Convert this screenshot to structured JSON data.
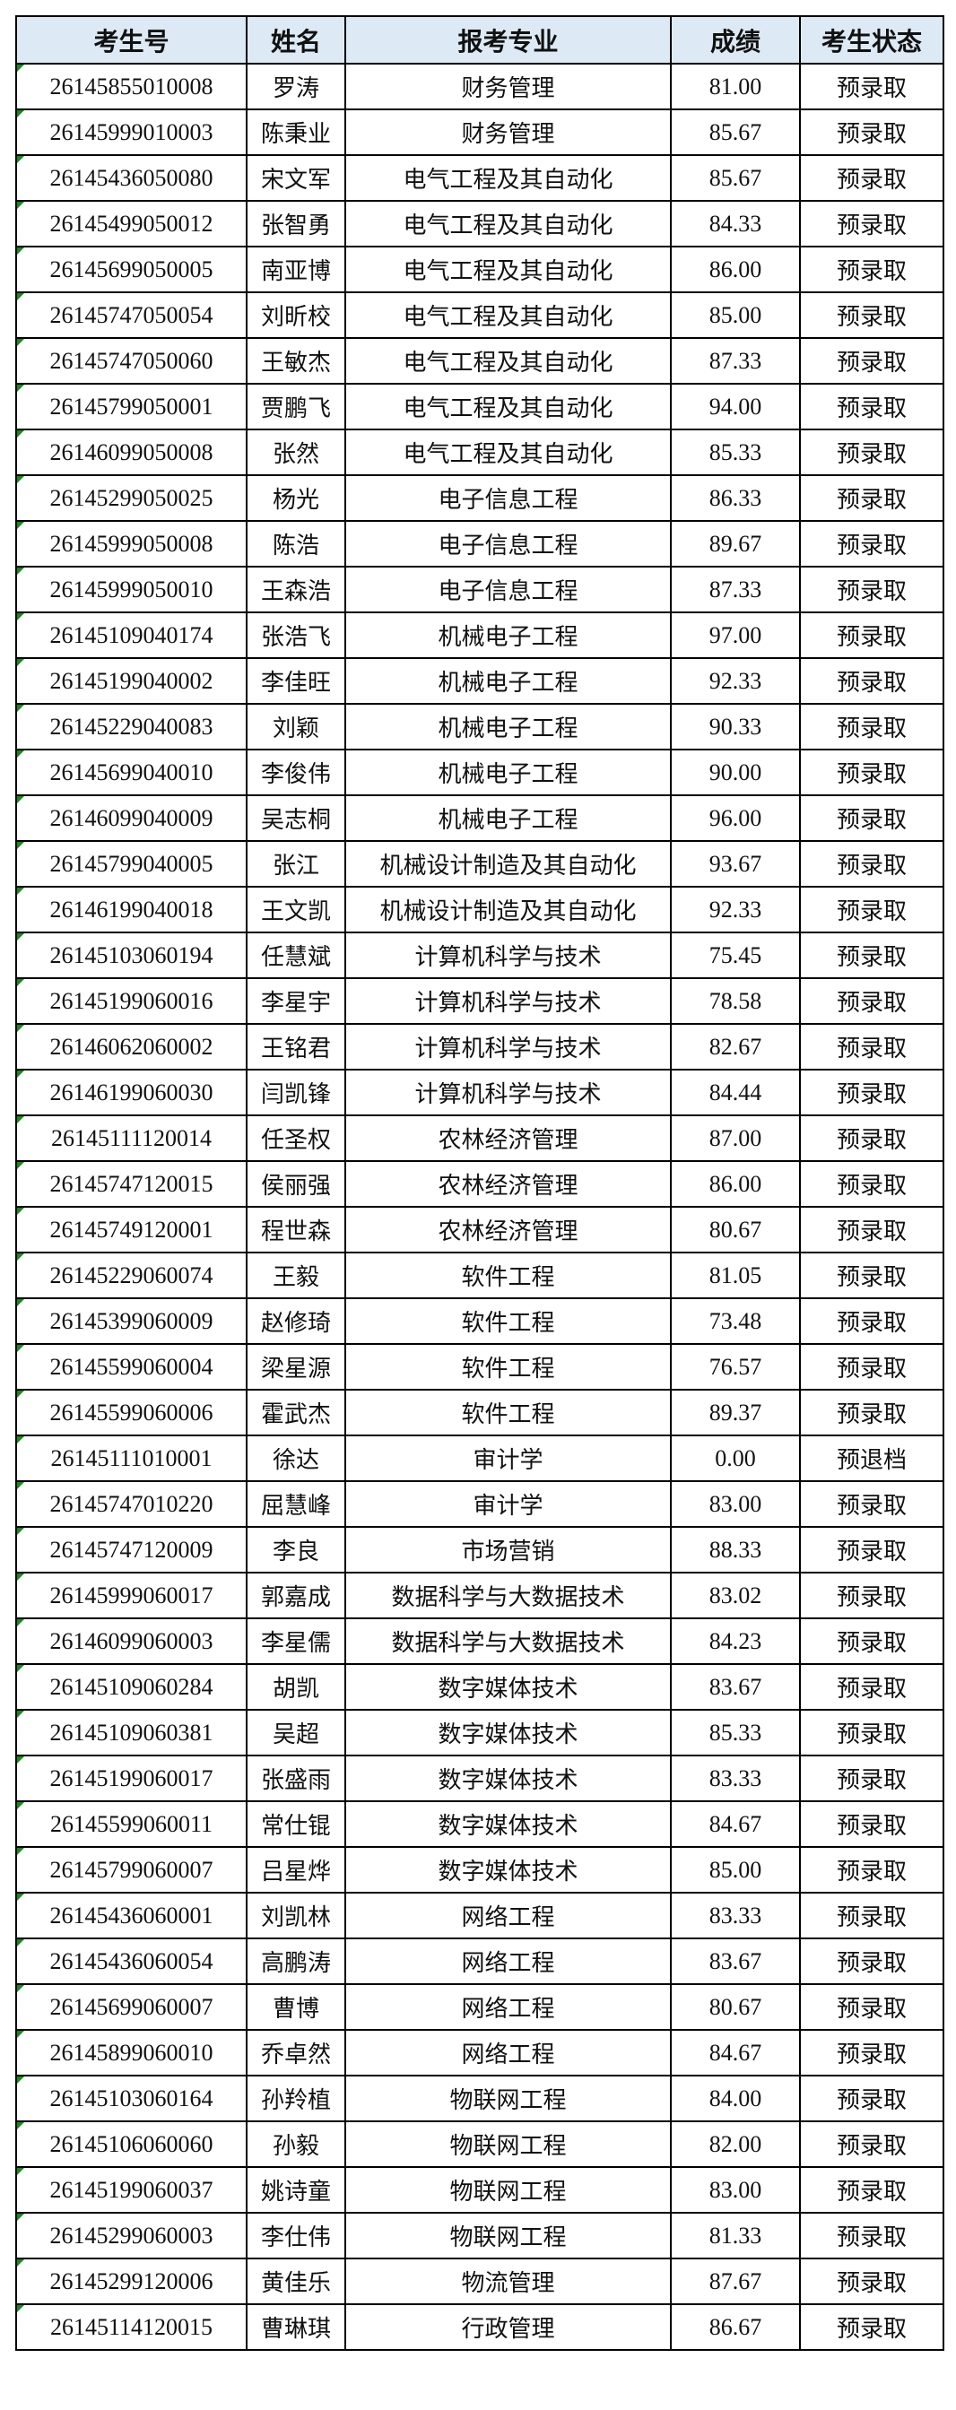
{
  "table": {
    "headers": [
      "考生号",
      "姓名",
      "报考专业",
      "成绩",
      "考生状态"
    ],
    "rows": [
      [
        "26145855010008",
        "罗涛",
        "财务管理",
        "81.00",
        "预录取"
      ],
      [
        "26145999010003",
        "陈秉业",
        "财务管理",
        "85.67",
        "预录取"
      ],
      [
        "26145436050080",
        "宋文军",
        "电气工程及其自动化",
        "85.67",
        "预录取"
      ],
      [
        "26145499050012",
        "张智勇",
        "电气工程及其自动化",
        "84.33",
        "预录取"
      ],
      [
        "26145699050005",
        "南亚博",
        "电气工程及其自动化",
        "86.00",
        "预录取"
      ],
      [
        "26145747050054",
        "刘昕校",
        "电气工程及其自动化",
        "85.00",
        "预录取"
      ],
      [
        "26145747050060",
        "王敏杰",
        "电气工程及其自动化",
        "87.33",
        "预录取"
      ],
      [
        "26145799050001",
        "贾鹏飞",
        "电气工程及其自动化",
        "94.00",
        "预录取"
      ],
      [
        "26146099050008",
        "张然",
        "电气工程及其自动化",
        "85.33",
        "预录取"
      ],
      [
        "26145299050025",
        "杨光",
        "电子信息工程",
        "86.33",
        "预录取"
      ],
      [
        "26145999050008",
        "陈浩",
        "电子信息工程",
        "89.67",
        "预录取"
      ],
      [
        "26145999050010",
        "王森浩",
        "电子信息工程",
        "87.33",
        "预录取"
      ],
      [
        "26145109040174",
        "张浩飞",
        "机械电子工程",
        "97.00",
        "预录取"
      ],
      [
        "26145199040002",
        "李佳旺",
        "机械电子工程",
        "92.33",
        "预录取"
      ],
      [
        "26145229040083",
        "刘颖",
        "机械电子工程",
        "90.33",
        "预录取"
      ],
      [
        "26145699040010",
        "李俊伟",
        "机械电子工程",
        "90.00",
        "预录取"
      ],
      [
        "26146099040009",
        "吴志桐",
        "机械电子工程",
        "96.00",
        "预录取"
      ],
      [
        "26145799040005",
        "张江",
        "机械设计制造及其自动化",
        "93.67",
        "预录取"
      ],
      [
        "26146199040018",
        "王文凯",
        "机械设计制造及其自动化",
        "92.33",
        "预录取"
      ],
      [
        "26145103060194",
        "任慧斌",
        "计算机科学与技术",
        "75.45",
        "预录取"
      ],
      [
        "26145199060016",
        "李星宇",
        "计算机科学与技术",
        "78.58",
        "预录取"
      ],
      [
        "26146062060002",
        "王铭君",
        "计算机科学与技术",
        "82.67",
        "预录取"
      ],
      [
        "26146199060030",
        "闫凯锋",
        "计算机科学与技术",
        "84.44",
        "预录取"
      ],
      [
        "26145111120014",
        "任圣权",
        "农林经济管理",
        "87.00",
        "预录取"
      ],
      [
        "26145747120015",
        "侯丽强",
        "农林经济管理",
        "86.00",
        "预录取"
      ],
      [
        "26145749120001",
        "程世森",
        "农林经济管理",
        "80.67",
        "预录取"
      ],
      [
        "26145229060074",
        "王毅",
        "软件工程",
        "81.05",
        "预录取"
      ],
      [
        "26145399060009",
        "赵修琦",
        "软件工程",
        "73.48",
        "预录取"
      ],
      [
        "26145599060004",
        "梁星源",
        "软件工程",
        "76.57",
        "预录取"
      ],
      [
        "26145599060006",
        "霍武杰",
        "软件工程",
        "89.37",
        "预录取"
      ],
      [
        "26145111010001",
        "徐达",
        "审计学",
        "0.00",
        "预退档"
      ],
      [
        "26145747010220",
        "屈慧峰",
        "审计学",
        "83.00",
        "预录取"
      ],
      [
        "26145747120009",
        "李良",
        "市场营销",
        "88.33",
        "预录取"
      ],
      [
        "26145999060017",
        "郭嘉成",
        "数据科学与大数据技术",
        "83.02",
        "预录取"
      ],
      [
        "26146099060003",
        "李星儒",
        "数据科学与大数据技术",
        "84.23",
        "预录取"
      ],
      [
        "26145109060284",
        "胡凯",
        "数字媒体技术",
        "83.67",
        "预录取"
      ],
      [
        "26145109060381",
        "吴超",
        "数字媒体技术",
        "85.33",
        "预录取"
      ],
      [
        "26145199060017",
        "张盛雨",
        "数字媒体技术",
        "83.33",
        "预录取"
      ],
      [
        "26145599060011",
        "常仕锟",
        "数字媒体技术",
        "84.67",
        "预录取"
      ],
      [
        "26145799060007",
        "吕星烨",
        "数字媒体技术",
        "85.00",
        "预录取"
      ],
      [
        "26145436060001",
        "刘凯林",
        "网络工程",
        "83.33",
        "预录取"
      ],
      [
        "26145436060054",
        "高鹏涛",
        "网络工程",
        "83.67",
        "预录取"
      ],
      [
        "26145699060007",
        "曹博",
        "网络工程",
        "80.67",
        "预录取"
      ],
      [
        "26145899060010",
        "乔卓然",
        "网络工程",
        "84.67",
        "预录取"
      ],
      [
        "26145103060164",
        "孙羚植",
        "物联网工程",
        "84.00",
        "预录取"
      ],
      [
        "26145106060060",
        "孙毅",
        "物联网工程",
        "82.00",
        "预录取"
      ],
      [
        "26145199060037",
        "姚诗童",
        "物联网工程",
        "83.00",
        "预录取"
      ],
      [
        "26145299060003",
        "李仕伟",
        "物联网工程",
        "81.33",
        "预录取"
      ],
      [
        "26145299120006",
        "黄佳乐",
        "物流管理",
        "87.67",
        "预录取"
      ],
      [
        "26145114120015",
        "曹琳琪",
        "行政管理",
        "86.67",
        "预录取"
      ]
    ]
  },
  "colors": {
    "header_bg": "#dde9f5",
    "border": "#000000",
    "text_flag": "#1a8a1a"
  }
}
